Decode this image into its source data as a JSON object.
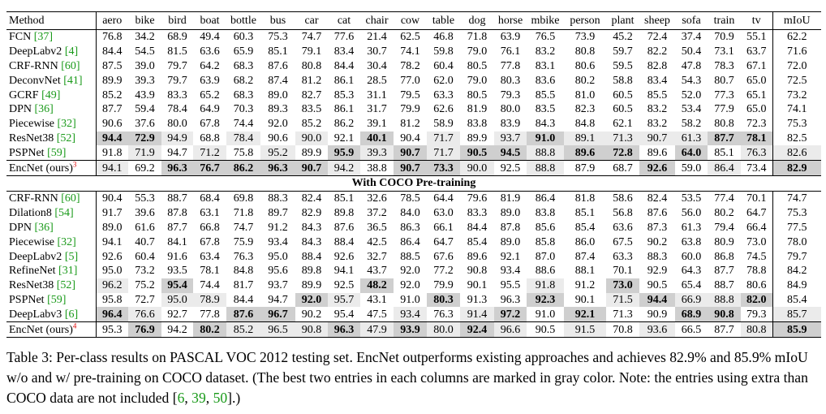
{
  "table": {
    "columns": [
      "Method",
      "aero",
      "bike",
      "bird",
      "boat",
      "bottle",
      "bus",
      "car",
      "cat",
      "chair",
      "cow",
      "table",
      "dog",
      "horse",
      "mbike",
      "person",
      "plant",
      "sheep",
      "sofa",
      "train",
      "tv",
      "mIoU"
    ],
    "sections": [
      {
        "rows": [
          {
            "method": "FCN",
            "ref": "[37]",
            "values": [
              "76.8",
              "34.2",
              "68.9",
              "49.4",
              "60.3",
              "75.3",
              "74.7",
              "77.6",
              "21.4",
              "62.5",
              "46.8",
              "71.8",
              "63.9",
              "76.5",
              "73.9",
              "45.2",
              "72.4",
              "37.4",
              "70.9",
              "55.1",
              "62.2"
            ]
          },
          {
            "method": "DeepLabv2",
            "ref": "[4]",
            "values": [
              "84.4",
              "54.5",
              "81.5",
              "63.6",
              "65.9",
              "85.1",
              "79.1",
              "83.4",
              "30.7",
              "74.1",
              "59.8",
              "79.0",
              "76.1",
              "83.2",
              "80.8",
              "59.7",
              "82.2",
              "50.4",
              "73.1",
              "63.7",
              "71.6"
            ]
          },
          {
            "method": "CRF-RNN",
            "ref": "[60]",
            "values": [
              "87.5",
              "39.0",
              "79.7",
              "64.2",
              "68.3",
              "87.6",
              "80.8",
              "84.4",
              "30.4",
              "78.2",
              "60.4",
              "80.5",
              "77.8",
              "83.1",
              "80.6",
              "59.5",
              "82.8",
              "47.8",
              "78.3",
              "67.1",
              "72.0"
            ]
          },
          {
            "method": "DeconvNet",
            "ref": "[41]",
            "values": [
              "89.9",
              "39.3",
              "79.7",
              "63.9",
              "68.2",
              "87.4",
              "81.2",
              "86.1",
              "28.5",
              "77.0",
              "62.0",
              "79.0",
              "80.3",
              "83.6",
              "80.2",
              "58.8",
              "83.4",
              "54.3",
              "80.7",
              "65.0",
              "72.5"
            ]
          },
          {
            "method": "GCRF",
            "ref": "[49]",
            "values": [
              "85.2",
              "43.9",
              "83.3",
              "65.2",
              "68.3",
              "89.0",
              "82.7",
              "85.3",
              "31.1",
              "79.5",
              "63.3",
              "80.5",
              "79.3",
              "85.5",
              "81.0",
              "60.5",
              "85.5",
              "52.0",
              "77.3",
              "65.1",
              "73.2"
            ]
          },
          {
            "method": "DPN",
            "ref": "[36]",
            "values": [
              "87.7",
              "59.4",
              "78.4",
              "64.9",
              "70.3",
              "89.3",
              "83.5",
              "86.1",
              "31.7",
              "79.9",
              "62.6",
              "81.9",
              "80.0",
              "83.5",
              "82.3",
              "60.5",
              "83.2",
              "53.4",
              "77.9",
              "65.0",
              "74.1"
            ]
          },
          {
            "method": "Piecewise",
            "ref": "[32]",
            "values": [
              "90.6",
              "37.6",
              "80.0",
              "67.8",
              "74.4",
              "92.0",
              "85.2",
              "86.2",
              "39.1",
              "81.2",
              "58.9",
              "83.8",
              "83.9",
              "84.3",
              "84.8",
              "62.1",
              "83.2",
              "58.2",
              "80.8",
              "72.3",
              "75.3"
            ]
          },
          {
            "method": "ResNet38",
            "ref": "[52]",
            "values": [
              "94.4",
              "72.9",
              "94.9",
              "68.8",
              "78.4",
              "90.6",
              "90.0",
              "92.1",
              "40.1",
              "90.4",
              "71.7",
              "89.9",
              "93.7",
              "91.0",
              "89.1",
              "71.3",
              "90.7",
              "61.3",
              "87.7",
              "78.1",
              "82.5"
            ],
            "best": [
              0,
              1,
              8,
              13,
              18,
              19
            ],
            "second": [
              2,
              4,
              6,
              10,
              12,
              14,
              15,
              16,
              17
            ]
          },
          {
            "method": "PSPNet",
            "ref": "[59]",
            "values": [
              "91.8",
              "71.9",
              "94.7",
              "71.2",
              "75.8",
              "95.2",
              "89.9",
              "95.9",
              "39.3",
              "90.7",
              "71.7",
              "90.5",
              "94.5",
              "88.8",
              "89.6",
              "72.8",
              "89.6",
              "64.0",
              "85.1",
              "76.3",
              "82.6"
            ],
            "best": [
              7,
              9,
              11,
              12,
              14,
              15,
              17
            ],
            "second": [
              1,
              3,
              5,
              8,
              10,
              13,
              19,
              20
            ]
          },
          {
            "method": "EncNet (ours)",
            "note": "3",
            "values": [
              "94.1",
              "69.2",
              "96.3",
              "76.7",
              "86.2",
              "96.3",
              "90.7",
              "94.2",
              "38.8",
              "90.7",
              "73.3",
              "90.0",
              "92.5",
              "88.8",
              "87.9",
              "68.7",
              "92.6",
              "59.0",
              "86.4",
              "73.4",
              "82.9"
            ],
            "best": [
              2,
              3,
              4,
              5,
              6,
              9,
              10,
              16,
              20
            ],
            "second": [
              0,
              7,
              11,
              13,
              18
            ]
          }
        ]
      },
      {
        "heading": "With COCO Pre-training",
        "rows": [
          {
            "method": "CRF-RNN",
            "ref": "[60]",
            "values": [
              "90.4",
              "55.3",
              "88.7",
              "68.4",
              "69.8",
              "88.3",
              "82.4",
              "85.1",
              "32.6",
              "78.5",
              "64.4",
              "79.6",
              "81.9",
              "86.4",
              "81.8",
              "58.6",
              "82.4",
              "53.5",
              "77.4",
              "70.1",
              "74.7"
            ]
          },
          {
            "method": "Dilation8",
            "ref": "[54]",
            "values": [
              "91.7",
              "39.6",
              "87.8",
              "63.1",
              "71.8",
              "89.7",
              "82.9",
              "89.8",
              "37.2",
              "84.0",
              "63.0",
              "83.3",
              "89.0",
              "83.8",
              "85.1",
              "56.8",
              "87.6",
              "56.0",
              "80.2",
              "64.7",
              "75.3"
            ]
          },
          {
            "method": "DPN",
            "ref": "[36]",
            "values": [
              "89.0",
              "61.6",
              "87.7",
              "66.8",
              "74.7",
              "91.2",
              "84.3",
              "87.6",
              "36.5",
              "86.3",
              "66.1",
              "84.4",
              "87.8",
              "85.6",
              "85.4",
              "63.6",
              "87.3",
              "61.3",
              "79.4",
              "66.4",
              "77.5"
            ]
          },
          {
            "method": "Piecewise",
            "ref": "[32]",
            "values": [
              "94.1",
              "40.7",
              "84.1",
              "67.8",
              "75.9",
              "93.4",
              "84.3",
              "88.4",
              "42.5",
              "86.4",
              "64.7",
              "85.4",
              "89.0",
              "85.8",
              "86.0",
              "67.5",
              "90.2",
              "63.8",
              "80.9",
              "73.0",
              "78.0"
            ]
          },
          {
            "method": "DeepLabv2",
            "ref": "[5]",
            "values": [
              "92.6",
              "60.4",
              "91.6",
              "63.4",
              "76.3",
              "95.0",
              "88.4",
              "92.6",
              "32.7",
              "88.5",
              "67.6",
              "89.6",
              "92.1",
              "87.0",
              "87.4",
              "63.3",
              "88.3",
              "60.0",
              "86.8",
              "74.5",
              "79.7"
            ]
          },
          {
            "method": "RefineNet",
            "ref": "[31]",
            "values": [
              "95.0",
              "73.2",
              "93.5",
              "78.1",
              "84.8",
              "95.6",
              "89.8",
              "94.1",
              "43.7",
              "92.0",
              "77.2",
              "90.8",
              "93.4",
              "88.6",
              "88.1",
              "70.1",
              "92.9",
              "64.3",
              "87.7",
              "78.8",
              "84.2"
            ]
          },
          {
            "method": "ResNet38",
            "ref": "[52]",
            "values": [
              "96.2",
              "75.2",
              "95.4",
              "74.4",
              "81.7",
              "93.7",
              "89.9",
              "92.5",
              "48.2",
              "92.0",
              "79.9",
              "90.1",
              "95.5",
              "91.8",
              "91.2",
              "73.0",
              "90.5",
              "65.4",
              "88.7",
              "80.6",
              "84.9"
            ],
            "best": [
              2,
              8,
              15
            ],
            "second": [
              0,
              13
            ]
          },
          {
            "method": "PSPNet",
            "ref": "[59]",
            "values": [
              "95.8",
              "72.7",
              "95.0",
              "78.9",
              "84.4",
              "94.7",
              "92.0",
              "95.7",
              "43.1",
              "91.0",
              "80.3",
              "91.3",
              "96.3",
              "92.3",
              "90.1",
              "71.5",
              "94.4",
              "66.9",
              "88.8",
              "82.0",
              "85.4"
            ],
            "best": [
              6,
              10,
              13,
              16,
              19
            ],
            "second": [
              2,
              3,
              7,
              15,
              17,
              18
            ]
          },
          {
            "method": "DeepLabv3",
            "ref": "[6]",
            "values": [
              "96.4",
              "76.6",
              "92.7",
              "77.8",
              "87.6",
              "96.7",
              "90.2",
              "95.4",
              "47.5",
              "93.4",
              "76.3",
              "91.4",
              "97.2",
              "91.0",
              "92.1",
              "71.3",
              "90.9",
              "68.9",
              "90.8",
              "79.3",
              "85.7"
            ],
            "best": [
              0,
              4,
              5,
              12,
              14,
              17,
              18
            ],
            "second": [
              1,
              9,
              11,
              20
            ]
          },
          {
            "method": "EncNet (ours)",
            "note": "4",
            "values": [
              "95.3",
              "76.9",
              "94.2",
              "80.2",
              "85.2",
              "96.5",
              "90.8",
              "96.3",
              "47.9",
              "93.9",
              "80.0",
              "92.4",
              "96.6",
              "90.5",
              "91.5",
              "70.8",
              "93.6",
              "66.5",
              "87.7",
              "80.8",
              "85.9"
            ],
            "best": [
              1,
              3,
              7,
              9,
              11,
              20
            ],
            "second": [
              4,
              5,
              6,
              8,
              10,
              12,
              14,
              16,
              19
            ]
          }
        ]
      }
    ]
  },
  "caption": [
    {
      "text": "Table 3: Per-class results on PASCAL VOC 2012 testing set. EncNet outperforms existing approaches and achieves 82.9% and 85.9% mIoU w/o and w/ pre-training on COCO dataset. (The best two entries in each columns are marked in gray color. Note: the entries using extra than COCO data are not included ["
    },
    {
      "ref": "6"
    },
    {
      "text": ", "
    },
    {
      "ref": "39"
    },
    {
      "text": ", "
    },
    {
      "ref": "50"
    },
    {
      "text": "].)"
    }
  ]
}
